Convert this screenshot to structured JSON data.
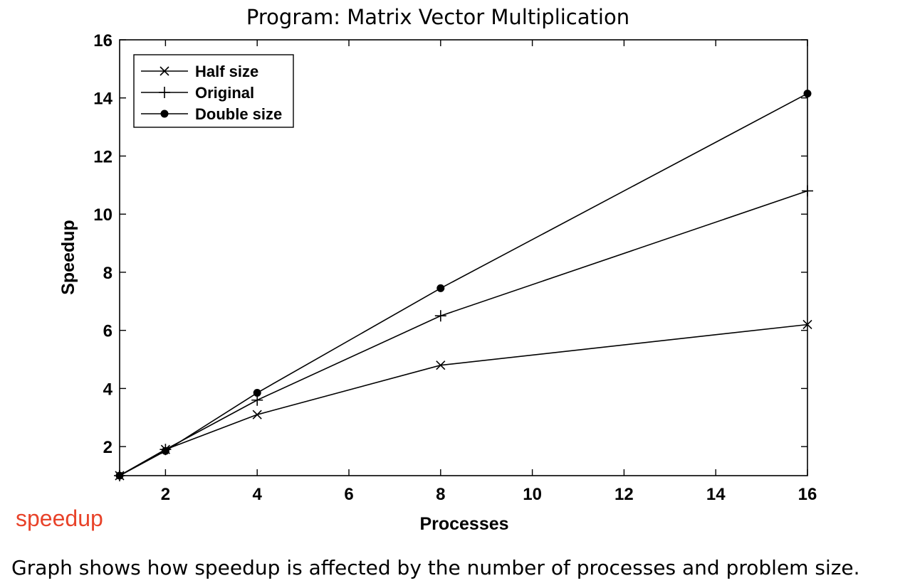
{
  "chart_data": {
    "type": "line",
    "title": "Program: Matrix Vector Multiplication",
    "xlabel": "Processes",
    "ylabel": "Speedup",
    "xlim": [
      1,
      16
    ],
    "ylim": [
      1,
      16
    ],
    "x_ticks": [
      2,
      4,
      6,
      8,
      10,
      12,
      14,
      16
    ],
    "y_ticks": [
      2,
      4,
      6,
      8,
      10,
      12,
      14,
      16
    ],
    "x": [
      1,
      2,
      4,
      8,
      16
    ],
    "series": [
      {
        "name": "Half size",
        "marker": "x",
        "values": [
          1.0,
          1.9,
          3.1,
          4.8,
          6.2
        ]
      },
      {
        "name": "Original",
        "marker": "+",
        "values": [
          1.0,
          1.9,
          3.6,
          6.5,
          10.8
        ]
      },
      {
        "name": "Double size",
        "marker": "dot",
        "values": [
          1.0,
          1.85,
          3.85,
          7.45,
          14.15
        ]
      }
    ],
    "grid": false,
    "legend_position": "top-left",
    "line_color": "#000000"
  },
  "annotation": "speedup",
  "annotation_color": "#e8432a",
  "caption": "Graph shows how speedup is affected by the number of processes and problem size."
}
